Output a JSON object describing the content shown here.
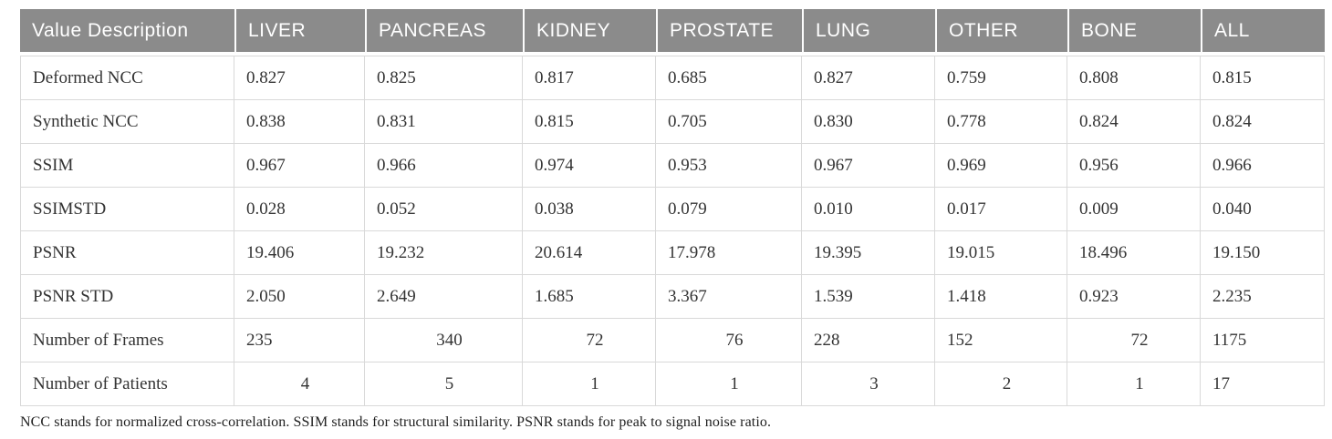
{
  "colors": {
    "header_bg": "#8b8b8b",
    "header_text": "#ffffff",
    "grid_line": "#d9d9d9",
    "body_text": "#333333"
  },
  "table": {
    "columns": [
      "Value Description",
      "LIVER",
      "PANCREAS",
      "KIDNEY",
      "PROSTATE",
      "LUNG",
      "OTHER",
      "BONE",
      "ALL"
    ],
    "rows": [
      {
        "label": "Deformed NCC",
        "values": [
          "0.827",
          "0.825",
          "0.817",
          "0.685",
          "0.827",
          "0.759",
          "0.808",
          "0.815"
        ],
        "align": [
          "left",
          "left",
          "left",
          "left",
          "left",
          "left",
          "left",
          "left"
        ]
      },
      {
        "label": "Synthetic NCC",
        "values": [
          "0.838",
          "0.831",
          "0.815",
          "0.705",
          "0.830",
          "0.778",
          "0.824",
          "0.824"
        ],
        "align": [
          "left",
          "left",
          "left",
          "left",
          "left",
          "left",
          "left",
          "left"
        ]
      },
      {
        "label": "SSIM",
        "values": [
          "0.967",
          "0.966",
          "0.974",
          "0.953",
          "0.967",
          "0.969",
          "0.956",
          "0.966"
        ],
        "align": [
          "left",
          "left",
          "left",
          "left",
          "left",
          "left",
          "left",
          "left"
        ]
      },
      {
        "label": "SSIMSTD",
        "values": [
          "0.028",
          "0.052",
          "0.038",
          "0.079",
          "0.010",
          "0.017",
          "0.009",
          "0.040"
        ],
        "align": [
          "left",
          "left",
          "left",
          "left",
          "left",
          "left",
          "left",
          "left"
        ]
      },
      {
        "label": "PSNR",
        "values": [
          "19.406",
          "19.232",
          "20.614",
          "17.978",
          "19.395",
          "19.015",
          "18.496",
          "19.150"
        ],
        "align": [
          "left",
          "left",
          "left",
          "left",
          "left",
          "left",
          "left",
          "left"
        ]
      },
      {
        "label": "PSNR STD",
        "values": [
          "2.050",
          "2.649",
          "1.685",
          "3.367",
          "1.539",
          "1.418",
          "0.923",
          "2.235"
        ],
        "align": [
          "left",
          "left",
          "left",
          "left",
          "left",
          "left",
          "left",
          "left"
        ]
      },
      {
        "label": "Number of Frames",
        "values": [
          "235",
          "340",
          "72",
          "76",
          "228",
          "152",
          "72",
          "1175"
        ],
        "align": [
          "left",
          "center",
          "center",
          "center",
          "left",
          "left",
          "center",
          "left"
        ]
      },
      {
        "label": "Number of Patients",
        "values": [
          "4",
          "5",
          "1",
          "1",
          "3",
          "2",
          "1",
          "17"
        ],
        "align": [
          "center",
          "center",
          "center",
          "center",
          "center",
          "center",
          "center",
          "left"
        ]
      }
    ],
    "footnote": "NCC stands for normalized cross-correlation. SSIM stands for structural similarity. PSNR stands for peak to signal noise ratio."
  }
}
